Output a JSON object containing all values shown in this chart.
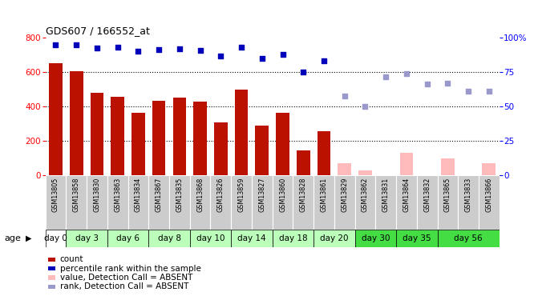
{
  "title": "GDS607 / 166552_at",
  "samples": [
    "GSM13805",
    "GSM13858",
    "GSM13830",
    "GSM13863",
    "GSM13834",
    "GSM13867",
    "GSM13835",
    "GSM13868",
    "GSM13826",
    "GSM13859",
    "GSM13827",
    "GSM13860",
    "GSM13828",
    "GSM13861",
    "GSM13829",
    "GSM13862",
    "GSM13831",
    "GSM13864",
    "GSM13832",
    "GSM13865",
    "GSM13833",
    "GSM13866"
  ],
  "count_values": [
    650,
    605,
    480,
    455,
    365,
    435,
    450,
    430,
    310,
    500,
    290,
    365,
    145,
    255,
    null,
    30,
    null,
    null,
    null,
    null,
    null,
    null
  ],
  "absent_count_values": [
    null,
    null,
    null,
    null,
    null,
    null,
    null,
    null,
    null,
    null,
    null,
    null,
    null,
    null,
    70,
    30,
    null,
    130,
    null,
    100,
    null,
    70
  ],
  "percentile_values": [
    760,
    760,
    740,
    745,
    720,
    730,
    735,
    725,
    695,
    745,
    680,
    700,
    600,
    665,
    null,
    null,
    null,
    null,
    null,
    null,
    null,
    null
  ],
  "absent_percentile_values": [
    null,
    null,
    null,
    null,
    null,
    null,
    null,
    null,
    null,
    null,
    null,
    null,
    null,
    null,
    460,
    400,
    570,
    590,
    530,
    535,
    490,
    490
  ],
  "day_configs": [
    {
      "label": "day 0",
      "start": 0,
      "end": 1,
      "color": "#ffffff"
    },
    {
      "label": "day 3",
      "start": 1,
      "end": 3,
      "color": "#bbffbb"
    },
    {
      "label": "day 6",
      "start": 3,
      "end": 5,
      "color": "#bbffbb"
    },
    {
      "label": "day 8",
      "start": 5,
      "end": 7,
      "color": "#bbffbb"
    },
    {
      "label": "day 10",
      "start": 7,
      "end": 9,
      "color": "#bbffbb"
    },
    {
      "label": "day 14",
      "start": 9,
      "end": 11,
      "color": "#bbffbb"
    },
    {
      "label": "day 18",
      "start": 11,
      "end": 13,
      "color": "#bbffbb"
    },
    {
      "label": "day 20",
      "start": 13,
      "end": 15,
      "color": "#bbffbb"
    },
    {
      "label": "day 30",
      "start": 15,
      "end": 17,
      "color": "#44dd44"
    },
    {
      "label": "day 35",
      "start": 17,
      "end": 19,
      "color": "#44dd44"
    },
    {
      "label": "day 56",
      "start": 19,
      "end": 22,
      "color": "#44dd44"
    }
  ],
  "ylim_left": [
    0,
    800
  ],
  "bar_color_present": "#bb1100",
  "bar_color_absent": "#ffbbbb",
  "dot_color_present": "#0000bb",
  "dot_color_absent": "#9999cc",
  "bg_gsm": "#cccccc",
  "legend_items": [
    {
      "color": "#bb1100",
      "label": "count"
    },
    {
      "color": "#0000bb",
      "label": "percentile rank within the sample"
    },
    {
      "color": "#ffbbbb",
      "label": "value, Detection Call = ABSENT"
    },
    {
      "color": "#9999cc",
      "label": "rank, Detection Call = ABSENT"
    }
  ]
}
